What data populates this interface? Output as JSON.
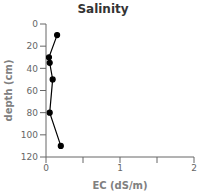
{
  "chart_data": {
    "type": "line",
    "title": "Salinity",
    "x_label": "EC (dS/m)",
    "y_label": "depth (cm)",
    "x": [
      0.15,
      0.04,
      0.05,
      0.09,
      0.05,
      0.2
    ],
    "values": [
      10,
      30,
      35,
      50,
      80,
      110
    ],
    "color": "#000000",
    "marker": "circle",
    "line_style": "solid",
    "xlim": [
      0,
      2
    ],
    "ylim": [
      120,
      0
    ],
    "xticks": [
      0,
      {
        "value": 0.5,
        "label": ""
      },
      1,
      {
        "value": 1.5,
        "label": ""
      },
      2
    ],
    "yticks": [
      0,
      20,
      40,
      60,
      80,
      100,
      120
    ],
    "grid": false
  }
}
